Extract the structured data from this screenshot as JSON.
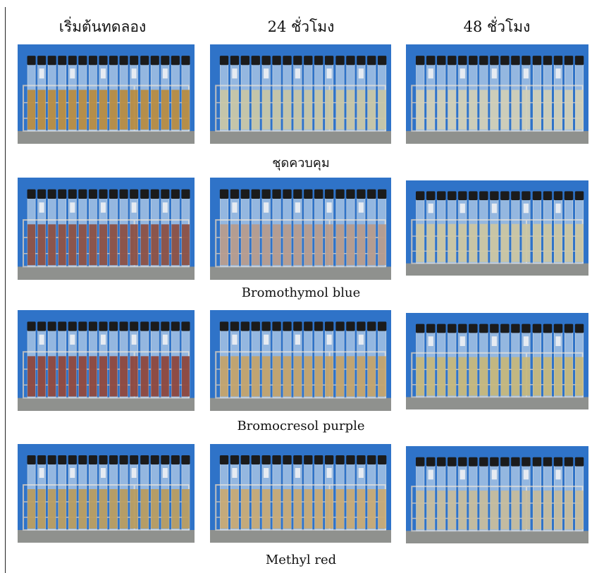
{
  "columns": [
    {
      "key": "start",
      "header": "เริ่มต้นทดลอง"
    },
    {
      "key": "h24",
      "header": "24 ชั่วโมง"
    },
    {
      "key": "h48",
      "header": "48 ชั่วโมง"
    }
  ],
  "rows": [
    {
      "key": "control",
      "label": "ชุดควบคุม",
      "liquid": [
        "#b88a3a",
        "#c9c6a4",
        "#d2cfb6"
      ]
    },
    {
      "key": "bromothymol",
      "label": "Bromothymol blue",
      "liquid": [
        "#8a4a3c",
        "#b79a8a",
        "#cdc6a0"
      ]
    },
    {
      "key": "bromocresol",
      "label": "Bromocresol purple",
      "liquid": [
        "#8c4034",
        "#c4a266",
        "#c7b778"
      ]
    },
    {
      "key": "methylred",
      "label": "Methyl red",
      "liquid": [
        "#b89a5a",
        "#c9a870",
        "#c6bb9a"
      ]
    }
  ],
  "colors": {
    "sky": "#2f73c8",
    "cap": "#1b1b1b",
    "rack": "#b9bcc0",
    "floor": "#8f918e"
  }
}
